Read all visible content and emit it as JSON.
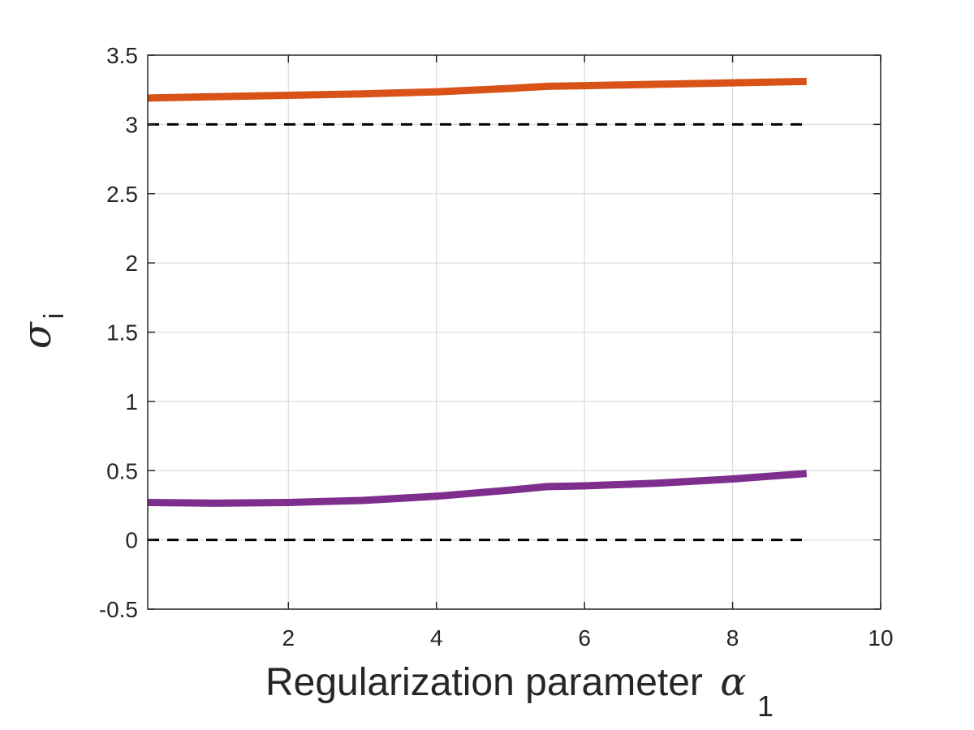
{
  "chart_data": {
    "type": "line",
    "title": "",
    "xlabel": "Regularization parameter",
    "xlabel_symbol": "α",
    "xlabel_subscript": "1",
    "ylabel_symbol": "σ",
    "ylabel_subscript": "i",
    "xlim": [
      0.1,
      10
    ],
    "ylim": [
      -0.5,
      3.5
    ],
    "xticks": [
      2,
      4,
      6,
      8,
      10
    ],
    "yticks": [
      -0.5,
      0,
      0.5,
      1,
      1.5,
      2,
      2.5,
      3,
      3.5
    ],
    "xtick_labels": [
      "2",
      "4",
      "6",
      "8",
      "10"
    ],
    "ytick_labels": [
      "-0.5",
      "0",
      "0.5",
      "1",
      "1.5",
      "2",
      "2.5",
      "3",
      "3.5"
    ],
    "grid": true,
    "series": [
      {
        "color": "#d95319",
        "x": [
          0.1,
          1,
          2,
          3,
          4,
          5,
          5.5,
          6,
          7,
          8,
          9
        ],
        "y": [
          3.19,
          3.2,
          3.21,
          3.22,
          3.235,
          3.26,
          3.275,
          3.28,
          3.29,
          3.3,
          3.31
        ]
      },
      {
        "color": "#7e2f8e",
        "x": [
          0.1,
          1,
          2,
          3,
          4,
          5,
          5.5,
          6,
          7,
          8,
          9
        ],
        "y": [
          0.27,
          0.265,
          0.27,
          0.285,
          0.315,
          0.36,
          0.385,
          0.39,
          0.41,
          0.44,
          0.48
        ]
      }
    ],
    "reference_lines": [
      {
        "y": 3,
        "style": "dashed",
        "color": "#000000"
      },
      {
        "y": 0,
        "style": "dashed",
        "color": "#000000"
      }
    ]
  }
}
